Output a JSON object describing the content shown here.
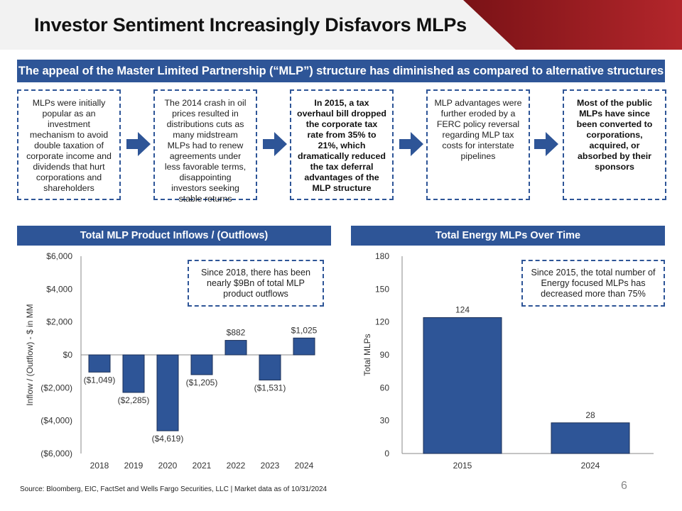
{
  "title": "Investor Sentiment Increasingly Disfavors MLPs",
  "subtitle": "The appeal of the Master Limited Partnership (“MLP”) structure has diminished as compared to alternative structures",
  "steps": [
    {
      "text": "MLPs were initially popular as an investment mechanism to avoid double taxation of corporate income and dividends that hurt corporations and shareholders"
    },
    {
      "text": "The 2014 crash in oil prices resulted in distributions cuts as many midstream MLPs had to renew agreements under less favorable terms, disappointing investors seeking stable returns"
    },
    {
      "text": "In 2015, a tax overhaul bill dropped the corporate tax rate from 35% to 21%, which dramatically reduced the tax deferral advantages of the MLP structure"
    },
    {
      "text": "MLP advantages were further eroded by a FERC policy reversal regarding MLP tax costs for interstate pipelines"
    },
    {
      "text": "Most of the public MLPs have since been converted to corporations, acquired, or absorbed by their sponsors"
    }
  ],
  "colors": {
    "accent": "#2e5597",
    "bar": "#2e5597",
    "red": "#9b1b1f"
  },
  "chart_data": [
    {
      "type": "bar",
      "title": "Total MLP Product Inflows / (Outflows)",
      "categories": [
        "2018",
        "2019",
        "2020",
        "2021",
        "2022",
        "2023",
        "2024"
      ],
      "values": [
        -1049,
        -2285,
        -4619,
        -1205,
        882,
        -1531,
        1025
      ],
      "value_labels": [
        "($1,049)",
        "($2,285)",
        "($4,619)",
        "($1,205)",
        "$882",
        "($1,531)",
        "$1,025"
      ],
      "ylabel": "Inflow / (Outflow) - $ in MM",
      "xlabel": "",
      "ylim": [
        -6000,
        6000
      ],
      "yticks": [
        6000,
        4000,
        2000,
        0,
        -2000,
        -4000,
        -6000
      ],
      "ytick_labels": [
        "$6,000",
        "$4,000",
        "$2,000",
        "$0",
        "($2,000)",
        "($4,000)",
        "($6,000)"
      ],
      "annotation": "Since 2018, there has been nearly $9Bn of total MLP product outflows"
    },
    {
      "type": "bar",
      "title": "Total Energy MLPs Over Time",
      "categories": [
        "2015",
        "2024"
      ],
      "values": [
        124,
        28
      ],
      "value_labels": [
        "124",
        "28"
      ],
      "ylabel": "Total MLPs",
      "xlabel": "",
      "ylim": [
        0,
        180
      ],
      "yticks": [
        180,
        150,
        120,
        90,
        60,
        30,
        0
      ],
      "ytick_labels": [
        "180",
        "150",
        "120",
        "90",
        "60",
        "30",
        "0"
      ],
      "annotation": "Since 2015, the total number of Energy focused MLPs has decreased more than 75%"
    }
  ],
  "footer": {
    "source": "Source: Bloomberg, EIC, FactSet and Wells Fargo Securities, LLC | Market data as of 10/31/2024",
    "page": "6"
  }
}
